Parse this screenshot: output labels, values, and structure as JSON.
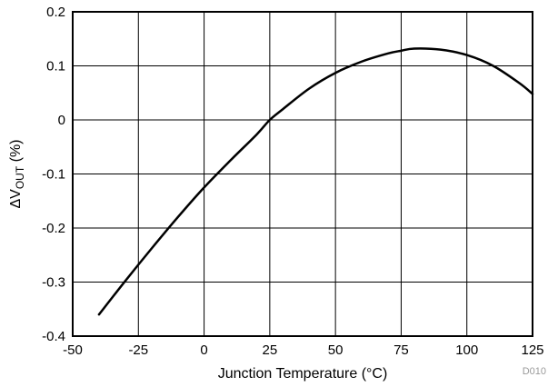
{
  "chart_data": {
    "type": "line",
    "title": "",
    "xlabel": "Junction Temperature (°C)",
    "ylabel_prefix": "ΔV",
    "ylabel_subscript": "OUT",
    "ylabel_suffix": " (%)",
    "xlim": [
      -50,
      125
    ],
    "ylim": [
      -0.4,
      0.2
    ],
    "xticks": [
      -50,
      -25,
      0,
      25,
      50,
      75,
      100,
      125
    ],
    "yticks": [
      0.2,
      0.1,
      0,
      -0.1,
      -0.2,
      -0.3,
      -0.4
    ],
    "xtick_labels": [
      "-50",
      "-25",
      "0",
      "25",
      "50",
      "75",
      "100",
      "125"
    ],
    "ytick_labels": [
      "0.2",
      "0.1",
      "0",
      "-0.1",
      "-0.2",
      "-0.3",
      "-0.4"
    ],
    "grid": true,
    "series": [
      {
        "color": "#000000",
        "x": [
          -40,
          -30,
          -20,
          -10,
          0,
          10,
          20,
          25,
          30,
          40,
          50,
          60,
          70,
          75,
          80,
          90,
          100,
          110,
          120,
          125
        ],
        "y": [
          -0.36,
          -0.298,
          -0.238,
          -0.18,
          -0.125,
          -0.075,
          -0.027,
          0.0,
          0.02,
          0.058,
          0.087,
          0.108,
          0.123,
          0.128,
          0.132,
          0.13,
          0.12,
          0.1,
          0.068,
          0.048
        ]
      }
    ],
    "figure_code": "D010"
  }
}
